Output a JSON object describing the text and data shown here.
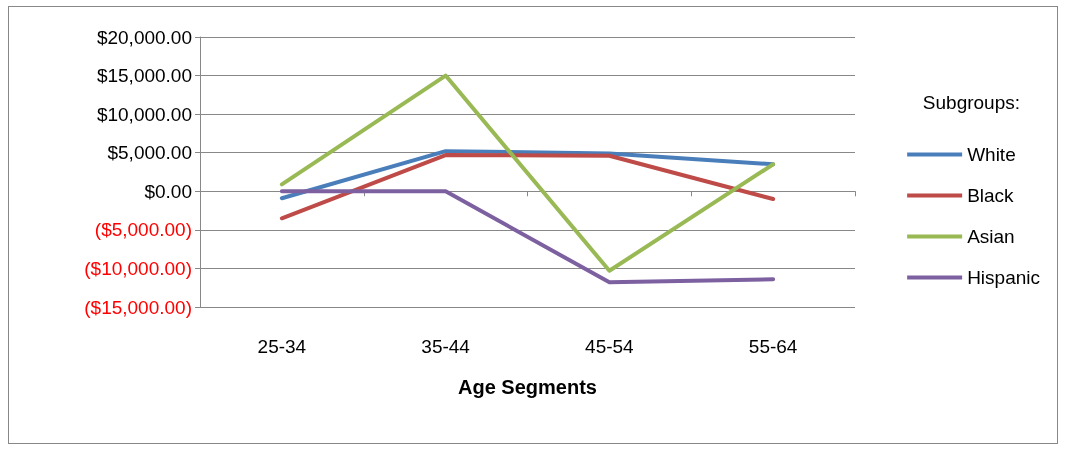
{
  "chart_data": {
    "type": "line",
    "xlabel": "Age Segments",
    "legend_title": "Subgroups:",
    "categories": [
      "25-34",
      "35-44",
      "45-54",
      "55-64"
    ],
    "series": [
      {
        "name": "White",
        "color": "#4a7ebb",
        "values": [
          -900,
          5200,
          4900,
          3500
        ]
      },
      {
        "name": "Black",
        "color": "#be4b48",
        "values": [
          -3500,
          4700,
          4600,
          -1000
        ]
      },
      {
        "name": "Asian",
        "color": "#98b954",
        "values": [
          900,
          15000,
          -10300,
          3500
        ]
      },
      {
        "name": "Hispanic",
        "color": "#7d60a0",
        "values": [
          0,
          0,
          -11800,
          -11400
        ]
      }
    ],
    "ylim": [
      -15000,
      20000
    ],
    "yticks": [
      {
        "value": -15000,
        "label": "($15,000.00)"
      },
      {
        "value": -10000,
        "label": "($10,000.00)"
      },
      {
        "value": -5000,
        "label": "($5,000.00)"
      },
      {
        "value": 0,
        "label": "$0.00"
      },
      {
        "value": 5000,
        "label": "$5,000.00"
      },
      {
        "value": 10000,
        "label": "$10,000.00"
      },
      {
        "value": 15000,
        "label": "$15,000.00"
      },
      {
        "value": 20000,
        "label": "$20,000.00"
      }
    ],
    "grid": "y",
    "legend": "right",
    "marker": "none",
    "line_style": "solid"
  }
}
